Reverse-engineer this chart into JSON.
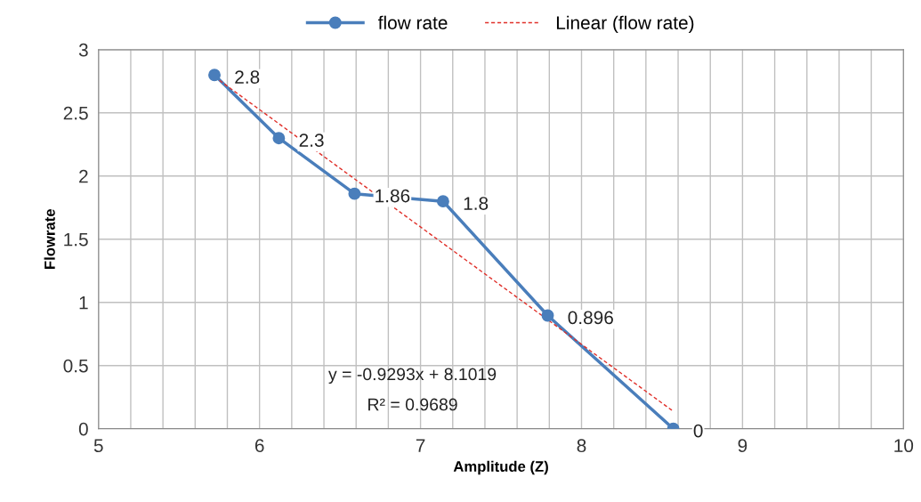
{
  "chart_data": {
    "type": "line",
    "xlabel": "Amplitude (Z)",
    "ylabel": "Flowrate",
    "x": [
      5.72,
      6.12,
      6.59,
      7.14,
      7.79,
      8.57
    ],
    "series": [
      {
        "name": "flow rate",
        "color": "#4a7ebb",
        "values": [
          2.8,
          2.3,
          1.86,
          1.8,
          0.896,
          0
        ],
        "value_labels": [
          "2.8",
          "2.3",
          "1.86",
          "1.8",
          "0.896",
          "0"
        ],
        "marker": "circle",
        "line_style": "solid"
      },
      {
        "name": "Linear (flow rate)",
        "type": "line",
        "color": "#e0302a",
        "x": [
          5.72,
          8.57
        ],
        "values": [
          2.786,
          0.138
        ],
        "marker": "none",
        "line_style": "dashed"
      }
    ],
    "annotations": [
      "y = -0.9293x + 8.1019",
      "R² = 0.9689"
    ],
    "xlim": [
      5,
      10
    ],
    "ylim": [
      0,
      3
    ],
    "xticks": [
      5,
      {
        "value": 5.2,
        "label": null
      },
      {
        "value": 5.4,
        "label": null
      },
      {
        "value": 5.6,
        "label": null
      },
      {
        "value": 5.8,
        "label": null
      },
      6,
      {
        "value": 6.2,
        "label": null
      },
      {
        "value": 6.4,
        "label": null
      },
      {
        "value": 6.6,
        "label": null
      },
      {
        "value": 6.8,
        "label": null
      },
      7,
      {
        "value": 7.2,
        "label": null
      },
      {
        "value": 7.4,
        "label": null
      },
      {
        "value": 7.6,
        "label": null
      },
      {
        "value": 7.8,
        "label": null
      },
      8,
      {
        "value": 8.2,
        "label": null
      },
      {
        "value": 8.4,
        "label": null
      },
      {
        "value": 8.6,
        "label": null
      },
      {
        "value": 8.8,
        "label": null
      },
      9,
      {
        "value": 9.2,
        "label": null
      },
      {
        "value": 9.4,
        "label": null
      },
      {
        "value": 9.6,
        "label": null
      },
      {
        "value": 9.8,
        "label": null
      },
      10
    ],
    "yticks": [
      0,
      0.5,
      1,
      1.5,
      2,
      2.5,
      3
    ],
    "grid": true,
    "legend": "top"
  }
}
